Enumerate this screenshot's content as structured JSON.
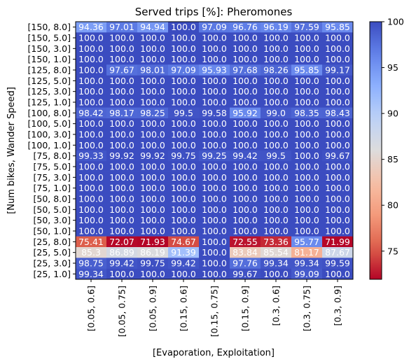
{
  "chart_data": {
    "type": "heatmap",
    "title": "Served trips [%]: Pheromones",
    "xlabel": "[Evaporation, Exploitation]",
    "ylabel": "[Num bikes, Wander Speed]",
    "x_categories": [
      "[0.05, 0.6]",
      "[0.05, 0.75]",
      "[0.05, 0.9]",
      "[0.15, 0.6]",
      "[0.15, 0.75]",
      "[0.15, 0.9]",
      "[0.3, 0.6]",
      "[0.3, 0.75]",
      "[0.3, 0.9]"
    ],
    "y_categories": [
      "[150, 8.0]",
      "[150, 5.0]",
      "[150, 3.0]",
      "[150, 1.0]",
      "[125, 8.0]",
      "[125, 5.0]",
      "[125, 3.0]",
      "[125, 1.0]",
      "[100, 8.0]",
      "[100, 5.0]",
      "[100, 3.0]",
      "[100, 1.0]",
      "[75, 8.0]",
      "[75, 5.0]",
      "[75, 3.0]",
      "[75, 1.0]",
      "[50, 8.0]",
      "[50, 5.0]",
      "[50, 3.0]",
      "[50, 1.0]",
      "[25, 8.0]",
      "[25, 5.0]",
      "[25, 3.0]",
      "[25, 1.0]"
    ],
    "values": [
      [
        "94.36",
        "97.01",
        "94.94",
        "100.0",
        "97.09",
        "96.76",
        "96.19",
        "97.59",
        "95.85"
      ],
      [
        "100.0",
        "100.0",
        "100.0",
        "100.0",
        "100.0",
        "100.0",
        "100.0",
        "100.0",
        "100.0"
      ],
      [
        "100.0",
        "100.0",
        "100.0",
        "100.0",
        "100.0",
        "100.0",
        "100.0",
        "100.0",
        "100.0"
      ],
      [
        "100.0",
        "100.0",
        "100.0",
        "100.0",
        "100.0",
        "100.0",
        "100.0",
        "100.0",
        "100.0"
      ],
      [
        "100.0",
        "97.67",
        "98.01",
        "97.09",
        "95.93",
        "97.68",
        "98.26",
        "95.85",
        "99.17"
      ],
      [
        "100.0",
        "100.0",
        "100.0",
        "100.0",
        "100.0",
        "100.0",
        "100.0",
        "100.0",
        "100.0"
      ],
      [
        "100.0",
        "100.0",
        "100.0",
        "100.0",
        "100.0",
        "100.0",
        "100.0",
        "100.0",
        "100.0"
      ],
      [
        "100.0",
        "100.0",
        "100.0",
        "100.0",
        "100.0",
        "100.0",
        "100.0",
        "100.0",
        "100.0"
      ],
      [
        "98.42",
        "98.17",
        "98.25",
        "99.5",
        "99.58",
        "95.92",
        "99.0",
        "98.35",
        "98.43"
      ],
      [
        "100.0",
        "100.0",
        "100.0",
        "100.0",
        "100.0",
        "100.0",
        "100.0",
        "100.0",
        "100.0"
      ],
      [
        "100.0",
        "100.0",
        "100.0",
        "100.0",
        "100.0",
        "100.0",
        "100.0",
        "100.0",
        "100.0"
      ],
      [
        "100.0",
        "100.0",
        "100.0",
        "100.0",
        "100.0",
        "100.0",
        "100.0",
        "100.0",
        "100.0"
      ],
      [
        "99.33",
        "99.92",
        "99.92",
        "99.75",
        "99.25",
        "99.42",
        "99.5",
        "100.0",
        "99.67"
      ],
      [
        "100.0",
        "100.0",
        "100.0",
        "100.0",
        "100.0",
        "100.0",
        "100.0",
        "100.0",
        "100.0"
      ],
      [
        "100.0",
        "100.0",
        "100.0",
        "100.0",
        "100.0",
        "100.0",
        "100.0",
        "100.0",
        "100.0"
      ],
      [
        "100.0",
        "100.0",
        "100.0",
        "100.0",
        "100.0",
        "100.0",
        "100.0",
        "100.0",
        "100.0"
      ],
      [
        "100.0",
        "100.0",
        "100.0",
        "100.0",
        "100.0",
        "100.0",
        "100.0",
        "100.0",
        "100.0"
      ],
      [
        "100.0",
        "100.0",
        "100.0",
        "100.0",
        "100.0",
        "100.0",
        "100.0",
        "100.0",
        "100.0"
      ],
      [
        "100.0",
        "100.0",
        "100.0",
        "100.0",
        "100.0",
        "100.0",
        "100.0",
        "100.0",
        "100.0"
      ],
      [
        "100.0",
        "100.0",
        "100.0",
        "100.0",
        "100.0",
        "100.0",
        "100.0",
        "100.0",
        "100.0"
      ],
      [
        "75.41",
        "72.07",
        "71.93",
        "74.67",
        "100.0",
        "72.55",
        "73.36",
        "95.77",
        "71.99"
      ],
      [
        "85.3",
        "86.89",
        "86.19",
        "91.39",
        "100.0",
        "83.84",
        "85.54",
        "81.17",
        "87.67"
      ],
      [
        "98.75",
        "99.42",
        "99.75",
        "99.42",
        "100.0",
        "97.76",
        "99.34",
        "99.34",
        "99.59"
      ],
      [
        "99.34",
        "100.0",
        "100.0",
        "100.0",
        "100.0",
        "99.67",
        "100.0",
        "99.09",
        "100.0"
      ]
    ],
    "colormap": "coolwarm_r",
    "vmin": 71.93,
    "vmax": 100,
    "colorbar_ticks": [
      "75",
      "80",
      "85",
      "90",
      "95",
      "100"
    ],
    "cell_text_color": "#ffffff"
  }
}
